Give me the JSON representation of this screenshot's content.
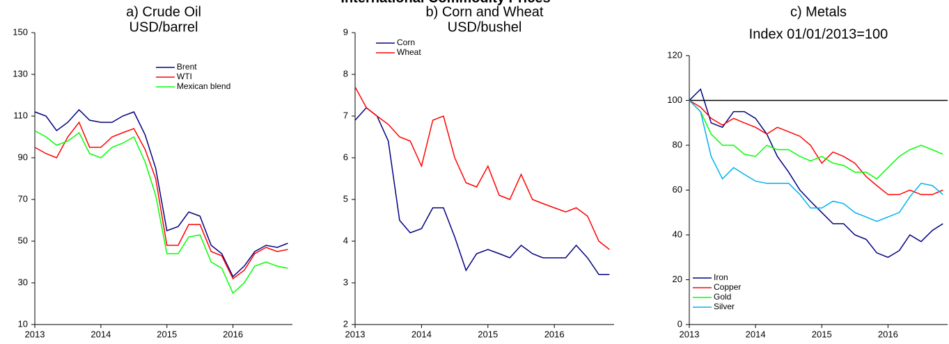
{
  "title": "International Commodity Prices",
  "chart_data": [
    {
      "type": "line",
      "title": "a) Crude Oil",
      "subtitle": "USD/barrel",
      "x": [
        2013,
        2013.17,
        2013.33,
        2013.5,
        2013.67,
        2013.83,
        2014,
        2014.17,
        2014.33,
        2014.5,
        2014.67,
        2014.83,
        2015,
        2015.17,
        2015.33,
        2015.5,
        2015.67,
        2015.83,
        2016,
        2016.17,
        2016.33,
        2016.5,
        2016.67,
        2016.83
      ],
      "series": [
        {
          "name": "Brent",
          "color": "#000080",
          "values": [
            112,
            110,
            103,
            107,
            113,
            108,
            107,
            107,
            110,
            112,
            101,
            85,
            55,
            57,
            64,
            62,
            48,
            44,
            33,
            38,
            45,
            48,
            47,
            49
          ]
        },
        {
          "name": "WTI",
          "color": "#ff0000",
          "values": [
            95,
            92,
            90,
            100,
            107,
            95,
            95,
            100,
            102,
            104,
            94,
            80,
            48,
            48,
            58,
            58,
            45,
            43,
            32,
            36,
            44,
            47,
            45,
            46
          ]
        },
        {
          "name": "Mexican blend",
          "color": "#00ff00",
          "values": [
            103,
            100,
            96,
            98,
            102,
            92,
            90,
            95,
            97,
            100,
            88,
            72,
            44,
            44,
            52,
            53,
            40,
            37,
            25,
            30,
            38,
            40,
            38,
            37
          ]
        }
      ],
      "xlim": [
        2013,
        2016.9
      ],
      "xticks": [
        2013,
        2014,
        2015,
        2016
      ],
      "ylim": [
        10,
        150
      ],
      "yticks": [
        10,
        30,
        50,
        70,
        90,
        110,
        130,
        150
      ],
      "legend": "upper right"
    },
    {
      "type": "line",
      "title": "b) Corn and Wheat",
      "subtitle": "USD/bushel",
      "x": [
        2013,
        2013.17,
        2013.33,
        2013.5,
        2013.67,
        2013.83,
        2014,
        2014.17,
        2014.33,
        2014.5,
        2014.67,
        2014.83,
        2015,
        2015.17,
        2015.33,
        2015.5,
        2015.67,
        2015.83,
        2016,
        2016.17,
        2016.33,
        2016.5,
        2016.67,
        2016.83
      ],
      "series": [
        {
          "name": "Corn",
          "color": "#000080",
          "values": [
            6.9,
            7.2,
            7.0,
            6.4,
            4.5,
            4.2,
            4.3,
            4.8,
            4.8,
            4.1,
            3.3,
            3.7,
            3.8,
            3.7,
            3.6,
            3.9,
            3.7,
            3.6,
            3.6,
            3.6,
            3.9,
            3.6,
            3.2,
            3.2
          ]
        },
        {
          "name": "Wheat",
          "color": "#ff0000",
          "values": [
            7.7,
            7.2,
            7.0,
            6.8,
            6.5,
            6.4,
            5.8,
            6.9,
            7.0,
            6.0,
            5.4,
            5.3,
            5.8,
            5.1,
            5.0,
            5.6,
            5.0,
            4.9,
            4.8,
            4.7,
            4.8,
            4.6,
            4.0,
            3.8
          ]
        }
      ],
      "xlim": [
        2013,
        2016.9
      ],
      "xticks": [
        2013,
        2014,
        2015,
        2016
      ],
      "ylim": [
        2,
        9
      ],
      "yticks": [
        2,
        3,
        4,
        5,
        6,
        7,
        8,
        9
      ],
      "legend": "upper left"
    },
    {
      "type": "line",
      "title": "c) Metals",
      "subtitle": "Index 01/01/2013=100",
      "x": [
        2013,
        2013.17,
        2013.33,
        2013.5,
        2013.67,
        2013.83,
        2014,
        2014.17,
        2014.33,
        2014.5,
        2014.67,
        2014.83,
        2015,
        2015.17,
        2015.33,
        2015.5,
        2015.67,
        2015.83,
        2016,
        2016.17,
        2016.33,
        2016.5,
        2016.67,
        2016.83
      ],
      "series": [
        {
          "name": "Iron",
          "color": "#000080",
          "values": [
            100,
            105,
            90,
            88,
            95,
            95,
            92,
            85,
            75,
            68,
            60,
            55,
            50,
            45,
            45,
            40,
            38,
            32,
            30,
            33,
            40,
            37,
            42,
            45
          ]
        },
        {
          "name": "Copper",
          "color": "#ff0000",
          "values": [
            100,
            97,
            92,
            89,
            92,
            90,
            88,
            85,
            88,
            86,
            84,
            80,
            72,
            77,
            75,
            72,
            66,
            62,
            58,
            58,
            60,
            58,
            58,
            60
          ]
        },
        {
          "name": "Gold",
          "color": "#00ff00",
          "values": [
            100,
            95,
            85,
            80,
            80,
            76,
            75,
            80,
            78,
            78,
            75,
            73,
            75,
            72,
            71,
            68,
            68,
            65,
            70,
            75,
            78,
            80,
            78,
            76
          ]
        },
        {
          "name": "Silver",
          "color": "#00b0f0",
          "values": [
            100,
            95,
            75,
            65,
            70,
            67,
            64,
            63,
            63,
            63,
            58,
            52,
            52,
            55,
            54,
            50,
            48,
            46,
            48,
            50,
            57,
            63,
            62,
            58
          ]
        }
      ],
      "reference_line": 100,
      "xlim": [
        2013,
        2016.9
      ],
      "xticks": [
        2013,
        2014,
        2015,
        2016
      ],
      "ylim": [
        0,
        120
      ],
      "yticks": [
        0,
        20,
        40,
        60,
        80,
        100,
        120
      ],
      "legend": "lower left"
    }
  ]
}
